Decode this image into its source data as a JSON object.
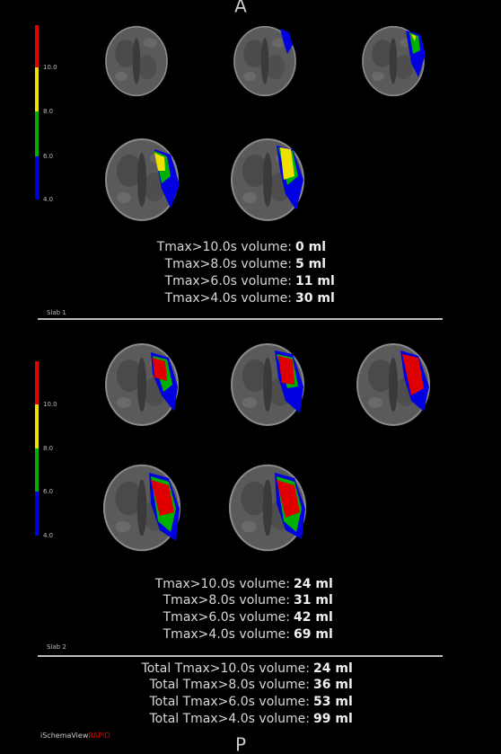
{
  "header": {
    "top_label": "A"
  },
  "slabs": [
    {
      "name": "Slab 1",
      "scale_labels": [
        "10.0",
        "8.0",
        "6.0",
        "4.0"
      ],
      "volumes": [
        {
          "label": "Tmax>10.0s volume:",
          "value": "0 ml"
        },
        {
          "label": "Tmax>8.0s volume:",
          "value": "5 ml"
        },
        {
          "label": "Tmax>6.0s volume:",
          "value": "11 ml"
        },
        {
          "label": "Tmax>4.0s volume:",
          "value": "30 ml"
        }
      ]
    },
    {
      "name": "Slab 2",
      "scale_labels": [
        "10.0",
        "8.0",
        "6.0",
        "4.0"
      ],
      "volumes": [
        {
          "label": "Tmax>10.0s volume:",
          "value": "24 ml"
        },
        {
          "label": "Tmax>8.0s volume:",
          "value": "31 ml"
        },
        {
          "label": "Tmax>6.0s volume:",
          "value": "42 ml"
        },
        {
          "label": "Tmax>4.0s volume:",
          "value": "69 ml"
        }
      ]
    }
  ],
  "totals": [
    {
      "label": "Total Tmax>10.0s volume:",
      "value": "24 ml"
    },
    {
      "label": "Total Tmax>8.0s volume:",
      "value": "36 ml"
    },
    {
      "label": "Total Tmax>6.0s volume:",
      "value": "53 ml"
    },
    {
      "label": "Total Tmax>4.0s volume:",
      "value": "99 ml"
    }
  ],
  "footer": {
    "brand": "iSchemaView",
    "product": "RAPID",
    "bottom_label": "P"
  }
}
